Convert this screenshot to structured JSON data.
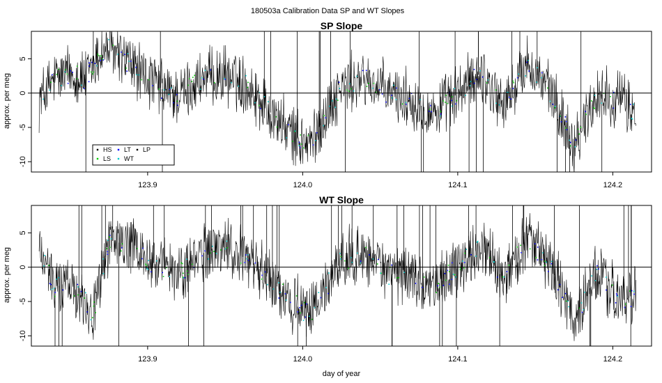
{
  "figure_title": "180503a   Calibration Data SP and WT Slopes",
  "chart_data": [
    {
      "type": "line",
      "title": "SP Slope",
      "xlabel": "",
      "ylabel": "approx. per meg",
      "xlim": [
        123.825,
        124.225
      ],
      "ylim": [
        -11.5,
        9
      ],
      "x_ticks": [
        123.9,
        124.0,
        124.1,
        124.2
      ],
      "x_tick_labels": [
        "123.9",
        "124.0",
        "124.1",
        "124.2"
      ],
      "y_ticks": [
        -10,
        -5,
        0,
        5
      ],
      "y_tick_labels": [
        "-10",
        "-5",
        "0",
        "5"
      ],
      "reference_line_y": 0,
      "trend": {
        "x": [
          123.83,
          123.84,
          123.85,
          123.86,
          123.87,
          123.875,
          123.89,
          123.9,
          123.91,
          123.92,
          123.935,
          123.95,
          123.965,
          123.98,
          123.995,
          124.005,
          124.015,
          124.025,
          124.04,
          124.055,
          124.07,
          124.085,
          124.1,
          124.115,
          124.13,
          124.145,
          124.16,
          124.175,
          124.19,
          124.205,
          124.215
        ],
        "y": [
          -1,
          2,
          3,
          2,
          6,
          6.5,
          4,
          2,
          0.5,
          -0.5,
          2,
          2.5,
          1,
          -3,
          -6.5,
          -7.5,
          -3,
          1,
          2,
          0,
          -1,
          -3,
          0,
          3,
          -2,
          4.5,
          0,
          -7.5,
          0,
          -1,
          -3
        ]
      },
      "series": [
        {
          "name": "HS",
          "color": "#000000"
        },
        {
          "name": "LS",
          "color": "#00cc00"
        },
        {
          "name": "LT",
          "color": "#0000ff"
        },
        {
          "name": "WT",
          "color": "#00cccc"
        },
        {
          "name": "LP",
          "color": "#000000"
        }
      ],
      "legend": {
        "placement": "bottom-left",
        "entries": [
          "HS",
          "LS",
          "LT",
          "WT",
          "LP"
        ]
      }
    },
    {
      "type": "line",
      "title": "WT Slope",
      "xlabel": "day of year",
      "ylabel": "approx. per meg",
      "xlim": [
        123.825,
        124.225
      ],
      "ylim": [
        -11.5,
        9
      ],
      "x_ticks": [
        123.9,
        124.0,
        124.1,
        124.2
      ],
      "x_tick_labels": [
        "123.9",
        "124.0",
        "124.1",
        "124.2"
      ],
      "y_ticks": [
        -10,
        -5,
        0,
        5
      ],
      "y_tick_labels": [
        "-10",
        "-5",
        "0",
        "5"
      ],
      "reference_line_y": 0,
      "trend": {
        "x": [
          123.83,
          123.84,
          123.85,
          123.86,
          123.865,
          123.875,
          123.89,
          123.9,
          123.91,
          123.92,
          123.935,
          123.95,
          123.965,
          123.98,
          123.995,
          124.005,
          124.015,
          124.025,
          124.04,
          124.055,
          124.07,
          124.085,
          124.1,
          124.115,
          124.13,
          124.145,
          124.16,
          124.175,
          124.19,
          124.205,
          124.215
        ],
        "y": [
          3,
          -3,
          -2,
          -5,
          -7,
          4,
          3,
          1,
          0,
          -1,
          2,
          3,
          1,
          -2,
          -5.5,
          -7,
          -3,
          1,
          2,
          -1,
          -1,
          -3,
          0,
          3,
          -2,
          4.5,
          0,
          -7.5,
          -1,
          -5,
          -4
        ]
      },
      "series": [
        {
          "name": "HS",
          "color": "#000000"
        },
        {
          "name": "LS",
          "color": "#00cc00"
        },
        {
          "name": "LT",
          "color": "#0000ff"
        },
        {
          "name": "WT",
          "color": "#00cccc"
        },
        {
          "name": "LP",
          "color": "#000000"
        }
      ]
    }
  ]
}
